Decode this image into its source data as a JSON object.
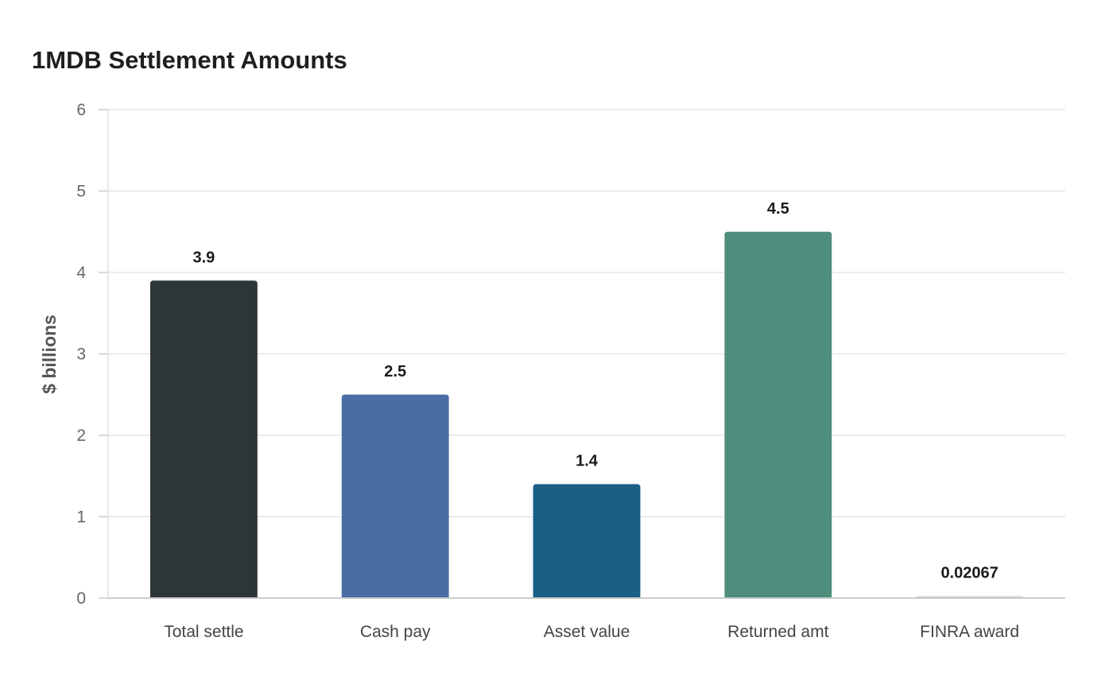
{
  "chart_data": {
    "type": "bar",
    "title": "1MDB Settlement Amounts",
    "xlabel": "",
    "ylabel": "$ billions",
    "ylim": [
      0,
      6
    ],
    "yticks": [
      0,
      1,
      2,
      3,
      4,
      5,
      6
    ],
    "grid": true,
    "categories": [
      "Total settle",
      "Cash pay",
      "Asset value",
      "Returned amt",
      "FINRA award"
    ],
    "values": [
      3.9,
      2.5,
      1.4,
      4.5,
      0.02067
    ],
    "value_labels": [
      "3.9",
      "2.5",
      "1.4",
      "4.5",
      "0.02067"
    ],
    "colors": [
      "#2d3538",
      "#4a6ea3",
      "#195f86",
      "#4e8d7b",
      "#d3d3d3"
    ]
  }
}
